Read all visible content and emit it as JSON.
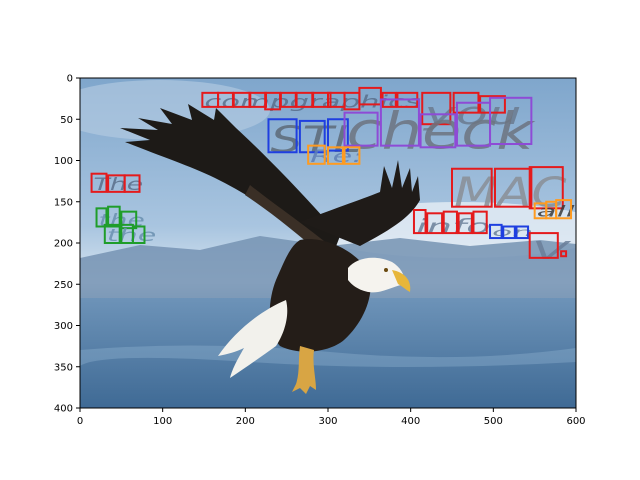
{
  "axes": {
    "x_ticks": [
      "0",
      "100",
      "200",
      "300",
      "400",
      "500",
      "600"
    ],
    "y_ticks": [
      "0",
      "50",
      "100",
      "150",
      "200",
      "250",
      "300",
      "350",
      "400"
    ],
    "xlim": [
      0,
      600
    ],
    "ylim": [
      400,
      0
    ]
  },
  "scene": {
    "subject": "bald-eagle",
    "sky_colors": [
      "#7fa6cc",
      "#a9c5e0",
      "#d6e4ef"
    ],
    "sea_color": "#5f86ad"
  },
  "words": [
    {
      "text": "compgraphics",
      "color": "#5a6e8a",
      "box_color": "#e41a1c"
    },
    {
      "text": "you",
      "color": "#6b7b90",
      "box_color": "#e41a1c"
    },
    {
      "text": "STL",
      "color": "#5d6a78",
      "box_color": "#1f3fe0"
    },
    {
      "text": "check",
      "color": "#6d7480",
      "box_color": "#8e4bd6"
    },
    {
      "text": "Re:",
      "color": "#5f7fb5",
      "box_color": "#ff9b21"
    },
    {
      "text": "The",
      "color": "#5a6e8a",
      "box_color": "#e41a1c"
    },
    {
      "text": "the",
      "color": "#6a90b0",
      "box_color": "#1f9d2a"
    },
    {
      "text": "the",
      "color": "#6a90b0",
      "box_color": "#1f9d2a"
    },
    {
      "text": "MAC",
      "color": "#8a8f96",
      "box_color": "#e41a1c"
    },
    {
      "text": "all",
      "color": "#3a3a3a",
      "box_color": "#ff9b21"
    },
    {
      "text": "info",
      "color": "#6a7f99",
      "box_color": "#e41a1c"
    },
    {
      "text": "on",
      "color": "#6a7f99",
      "box_color": "#1f3fe0"
    },
    {
      "text": "V",
      "color": "#6a7f99",
      "box_color": "#e41a1c"
    }
  ]
}
